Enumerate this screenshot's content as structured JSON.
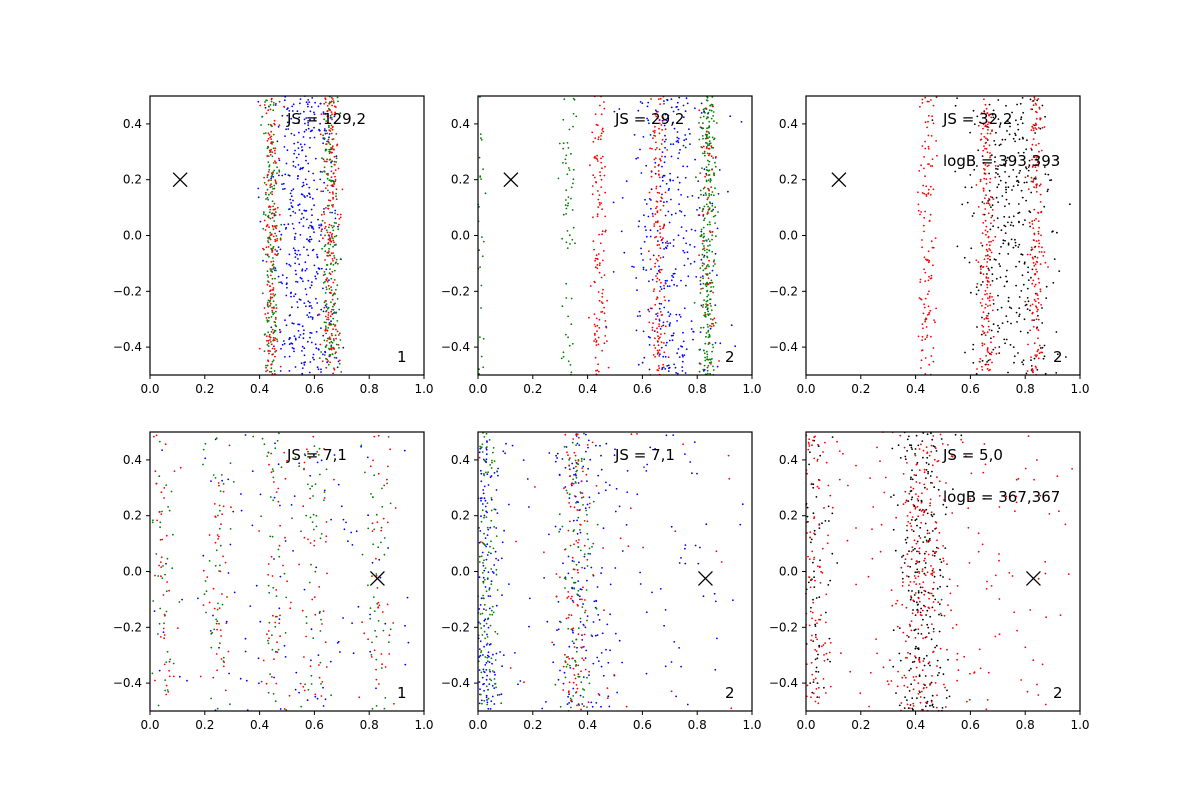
{
  "figure": {
    "background": "#ffffff"
  },
  "colors": {
    "blue": "#0000ff",
    "green": "#008000",
    "red": "#ff0000",
    "black": "#000000",
    "axes": "#000000"
  },
  "chart_data": [
    {
      "type": "scatter",
      "panel": 1,
      "xlim": [
        0.0,
        1.0
      ],
      "ylim": [
        -0.5,
        0.5
      ],
      "xticks": [
        "0.0",
        "0.2",
        "0.4",
        "0.6",
        "0.8",
        "1.0"
      ],
      "yticks": [
        "-0.4",
        "-0.2",
        "0.0",
        "0.2",
        "0.4"
      ],
      "annotations": [
        "JS = 129,2"
      ],
      "corner_label": "1",
      "marker": {
        "symbol": "x",
        "x": 0.11,
        "y": 0.2
      },
      "series": [
        {
          "color": "blue",
          "clusters": [
            {
              "x": 0.56,
              "sd": 0.06,
              "weight": 1.0
            }
          ]
        },
        {
          "color": "green",
          "clusters": [
            {
              "x": 0.44,
              "sd": 0.015,
              "weight": 0.4
            },
            {
              "x": 0.66,
              "sd": 0.015,
              "weight": 0.45
            }
          ]
        },
        {
          "color": "red",
          "clusters": [
            {
              "x": 0.44,
              "sd": 0.015,
              "weight": 0.4
            },
            {
              "x": 0.66,
              "sd": 0.015,
              "weight": 0.45
            }
          ]
        }
      ]
    },
    {
      "type": "scatter",
      "panel": 2,
      "xlim": [
        0.0,
        1.0
      ],
      "ylim": [
        -0.5,
        0.5
      ],
      "xticks": [
        "0.0",
        "0.2",
        "0.4",
        "0.6",
        "0.8",
        "1.0"
      ],
      "yticks": [
        "-0.4",
        "-0.2",
        "0.0",
        "0.2",
        "0.4"
      ],
      "annotations": [
        "JS = 29,2"
      ],
      "corner_label": "2",
      "marker": {
        "symbol": "x",
        "x": 0.12,
        "y": 0.2
      },
      "series": [
        {
          "color": "blue",
          "clusters": [
            {
              "x": 0.7,
              "sd": 0.08,
              "weight": 0.8
            }
          ]
        },
        {
          "color": "green",
          "clusters": [
            {
              "x": 0.84,
              "sd": 0.015,
              "weight": 0.65
            },
            {
              "x": 0.33,
              "sd": 0.015,
              "weight": 0.15
            },
            {
              "x": 0.005,
              "sd": 0.01,
              "weight": 0.1
            }
          ]
        },
        {
          "color": "red",
          "clusters": [
            {
              "x": 0.44,
              "sd": 0.015,
              "weight": 0.3
            },
            {
              "x": 0.66,
              "sd": 0.015,
              "weight": 0.4
            },
            {
              "x": 0.84,
              "sd": 0.015,
              "weight": 0.15
            }
          ]
        }
      ]
    },
    {
      "type": "scatter",
      "panel": 3,
      "xlim": [
        0.0,
        1.0
      ],
      "ylim": [
        -0.5,
        0.5
      ],
      "xticks": [
        "0.0",
        "0.2",
        "0.4",
        "0.6",
        "0.8",
        "1.0"
      ],
      "yticks": [
        "-0.4",
        "-0.2",
        "0.0",
        "0.2",
        "0.4"
      ],
      "annotations": [
        "JS = 32,2",
        "logB = 393,393"
      ],
      "corner_label": "2",
      "marker": {
        "symbol": "x",
        "x": 0.12,
        "y": 0.2
      },
      "series": [
        {
          "color": "black",
          "clusters": [
            {
              "x": 0.74,
              "sd": 0.08,
              "weight": 0.8
            }
          ]
        },
        {
          "color": "red",
          "clusters": [
            {
              "x": 0.44,
              "sd": 0.015,
              "weight": 0.3
            },
            {
              "x": 0.66,
              "sd": 0.015,
              "weight": 0.45
            },
            {
              "x": 0.84,
              "sd": 0.015,
              "weight": 0.4
            }
          ]
        }
      ]
    },
    {
      "type": "scatter",
      "panel": 4,
      "xlim": [
        0.0,
        1.0
      ],
      "ylim": [
        -0.5,
        0.5
      ],
      "xticks": [
        "0.0",
        "0.2",
        "0.4",
        "0.6",
        "0.8",
        "1.0"
      ],
      "yticks": [
        "-0.4",
        "-0.2",
        "0.0",
        "0.2",
        "0.4"
      ],
      "annotations": [
        "JS = 7,1"
      ],
      "corner_label": "1",
      "marker": {
        "symbol": "x",
        "x": 0.83,
        "y": -0.025
      },
      "series": [
        {
          "color": "blue",
          "clusters": [
            {
              "x": 0.5,
              "sd": 0.3,
              "weight": 0.3
            }
          ]
        },
        {
          "color": "green",
          "clusters": [
            {
              "x": 0.05,
              "sd": 0.03,
              "weight": 0.1
            },
            {
              "x": 0.25,
              "sd": 0.03,
              "weight": 0.1
            },
            {
              "x": 0.45,
              "sd": 0.03,
              "weight": 0.1
            },
            {
              "x": 0.6,
              "sd": 0.03,
              "weight": 0.1
            },
            {
              "x": 0.83,
              "sd": 0.03,
              "weight": 0.1
            }
          ]
        },
        {
          "color": "red",
          "clusters": [
            {
              "x": 0.05,
              "sd": 0.03,
              "weight": 0.1
            },
            {
              "x": 0.25,
              "sd": 0.03,
              "weight": 0.1
            },
            {
              "x": 0.45,
              "sd": 0.03,
              "weight": 0.1
            },
            {
              "x": 0.6,
              "sd": 0.03,
              "weight": 0.1
            },
            {
              "x": 0.83,
              "sd": 0.03,
              "weight": 0.1
            }
          ]
        }
      ]
    },
    {
      "type": "scatter",
      "panel": 5,
      "xlim": [
        0.0,
        1.0
      ],
      "ylim": [
        -0.5,
        0.5
      ],
      "xticks": [
        "0.0",
        "0.2",
        "0.4",
        "0.6",
        "0.8",
        "1.0"
      ],
      "yticks": [
        "-0.4",
        "-0.2",
        "0.0",
        "0.2",
        "0.4"
      ],
      "annotations": [
        "JS = 7,1"
      ],
      "corner_label": "2",
      "marker": {
        "symbol": "x",
        "x": 0.83,
        "y": -0.025
      },
      "series": [
        {
          "color": "blue",
          "clusters": [
            {
              "x": 0.03,
              "sd": 0.03,
              "weight": 0.4
            },
            {
              "x": 0.38,
              "sd": 0.05,
              "weight": 0.3
            },
            {
              "x": 0.5,
              "sd": 0.3,
              "weight": 0.3
            }
          ]
        },
        {
          "color": "green",
          "clusters": [
            {
              "x": 0.03,
              "sd": 0.02,
              "weight": 0.3
            },
            {
              "x": 0.36,
              "sd": 0.03,
              "weight": 0.25
            }
          ]
        },
        {
          "color": "red",
          "clusters": [
            {
              "x": 0.36,
              "sd": 0.03,
              "weight": 0.25
            },
            {
              "x": 0.48,
              "sd": 0.3,
              "weight": 0.1
            }
          ]
        }
      ]
    },
    {
      "type": "scatter",
      "panel": 6,
      "xlim": [
        0.0,
        1.0
      ],
      "ylim": [
        -0.5,
        0.5
      ],
      "xticks": [
        "0.0",
        "0.2",
        "0.4",
        "0.6",
        "0.8",
        "1.0"
      ],
      "yticks": [
        "-0.4",
        "-0.2",
        "0.0",
        "0.2",
        "0.4"
      ],
      "annotations": [
        "JS = 5,0",
        "logB = 367,367"
      ],
      "corner_label": "2",
      "marker": {
        "symbol": "x",
        "x": 0.83,
        "y": -0.025
      },
      "series": [
        {
          "color": "black",
          "clusters": [
            {
              "x": 0.42,
              "sd": 0.05,
              "weight": 0.6
            },
            {
              "x": 0.03,
              "sd": 0.03,
              "weight": 0.2
            }
          ]
        },
        {
          "color": "red",
          "clusters": [
            {
              "x": 0.42,
              "sd": 0.05,
              "weight": 0.5
            },
            {
              "x": 0.03,
              "sd": 0.03,
              "weight": 0.3
            },
            {
              "x": 0.5,
              "sd": 0.3,
              "weight": 0.4
            }
          ]
        }
      ]
    }
  ]
}
